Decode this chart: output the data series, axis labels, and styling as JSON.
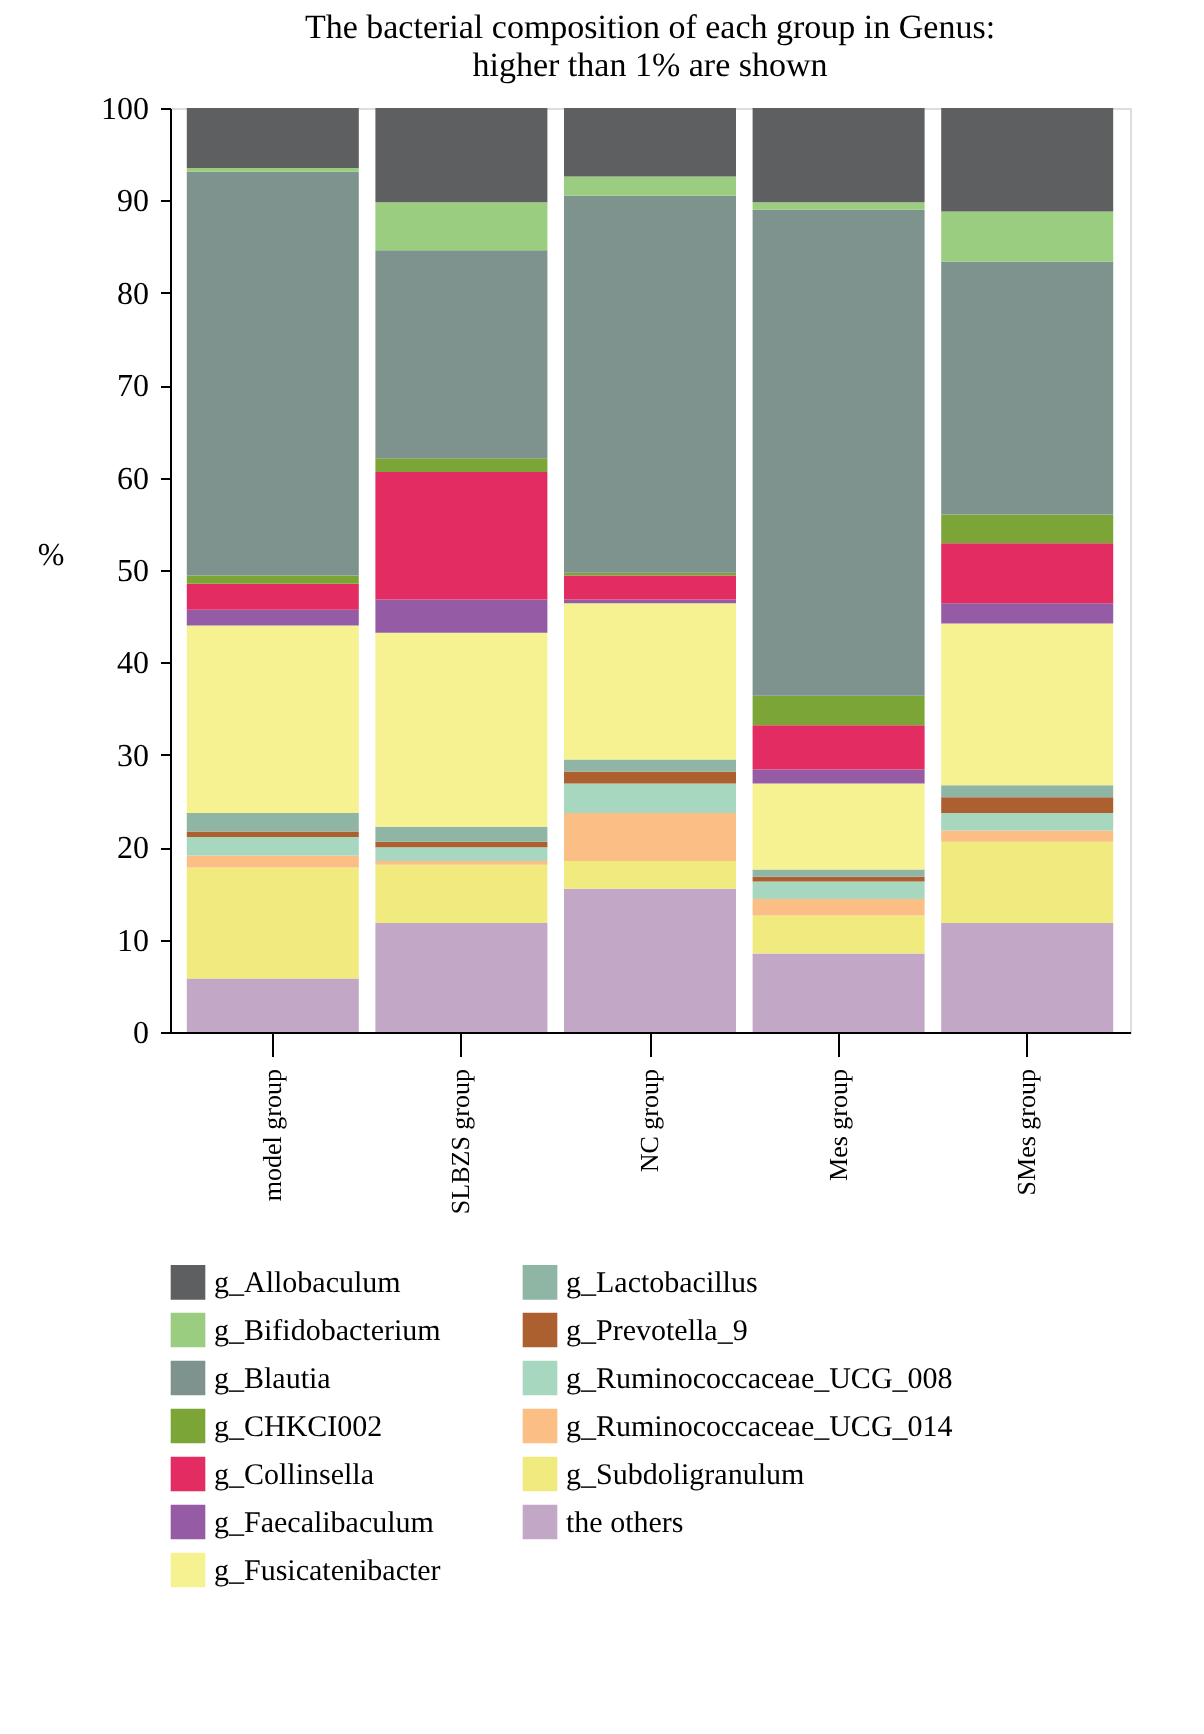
{
  "chart_data": {
    "type": "bar",
    "stacked": true,
    "title": "The bacterial composition of each group in Genus: higher than 1% are shown",
    "ylabel": "%",
    "categories": [
      "model group",
      "SLBZS group",
      "NC group",
      "Mes group",
      "SMes group"
    ],
    "ylim": [
      0,
      100
    ],
    "yticks": [
      0,
      10,
      20,
      30,
      40,
      50,
      60,
      70,
      80,
      90,
      100
    ],
    "grid": false,
    "legend": "bottom",
    "series": [
      {
        "name": "the others",
        "color": "#c3a7c6",
        "values": [
          5.8,
          11.8,
          15.5,
          8.5,
          11.8
        ]
      },
      {
        "name": "g_Subdoligranulum",
        "color": "#f0ea7f",
        "values": [
          12.0,
          6.3,
          3.0,
          4.1,
          8.8
        ]
      },
      {
        "name": "g_Ruminococcaceae_UCG_014",
        "color": "#fbbf85",
        "values": [
          1.3,
          0.4,
          5.2,
          1.8,
          1.2
        ]
      },
      {
        "name": "g_Ruminococcaceae_UCG_008",
        "color": "#a7d7bf",
        "values": [
          2.0,
          1.5,
          3.2,
          1.9,
          1.9
        ]
      },
      {
        "name": "g_Prevotella_9",
        "color": "#ac5f2f",
        "values": [
          0.6,
          0.6,
          1.3,
          0.5,
          1.7
        ]
      },
      {
        "name": "g_Lactobacillus",
        "color": "#8fb5a5",
        "values": [
          2.0,
          1.6,
          1.3,
          0.8,
          1.3
        ]
      },
      {
        "name": "g_Fusicatenibacter",
        "color": "#f6f191",
        "values": [
          20.3,
          21.0,
          16.9,
          9.3,
          17.5
        ]
      },
      {
        "name": "g_Faecalibaculum",
        "color": "#955ba5",
        "values": [
          1.7,
          3.6,
          0.4,
          1.5,
          2.2
        ]
      },
      {
        "name": "g_Collinsella",
        "color": "#e22c62",
        "values": [
          2.8,
          13.8,
          2.6,
          4.8,
          6.5
        ]
      },
      {
        "name": "g_CHKCI002",
        "color": "#7ba536",
        "values": [
          0.9,
          1.5,
          0.3,
          3.2,
          3.1
        ]
      },
      {
        "name": "g_Blautia",
        "color": "#7e938d",
        "values": [
          43.7,
          22.5,
          40.8,
          52.6,
          27.4
        ]
      },
      {
        "name": "g_Bifidobacterium",
        "color": "#9acd80",
        "values": [
          0.4,
          5.2,
          2.1,
          0.8,
          5.4
        ]
      },
      {
        "name": "g_Allobaculum",
        "color": "#5e5f61",
        "values": [
          6.5,
          10.2,
          7.4,
          10.2,
          11.2
        ]
      }
    ]
  }
}
